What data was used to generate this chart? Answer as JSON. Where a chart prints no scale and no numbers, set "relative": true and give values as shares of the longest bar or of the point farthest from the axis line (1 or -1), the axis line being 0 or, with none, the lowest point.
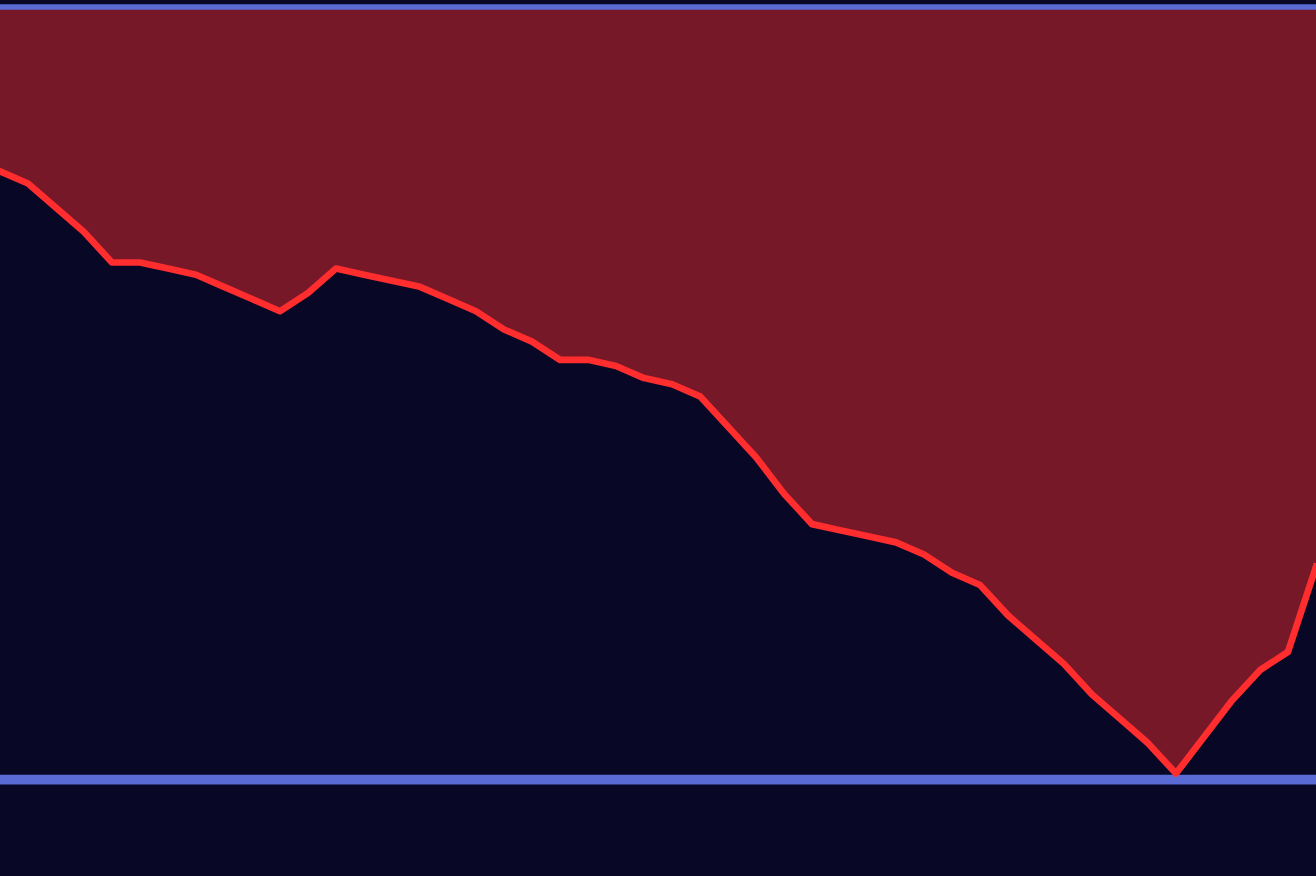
{
  "chart_data": {
    "type": "area",
    "relative": true,
    "categories": [
      null,
      null,
      null,
      null,
      null,
      null,
      null,
      null,
      null,
      null,
      null,
      null,
      null,
      null,
      null,
      null,
      null,
      null,
      null,
      null,
      null,
      null,
      null,
      null,
      null,
      null,
      null,
      null,
      null,
      null,
      null,
      null,
      null,
      null,
      null,
      null,
      null,
      null,
      null,
      null,
      null,
      null,
      null,
      null,
      null,
      null,
      null,
      null
    ],
    "series": [
      {
        "color": "#ff2d2d",
        "values": [
          1.0,
          0.98,
          0.94,
          0.9,
          0.85,
          0.85,
          0.84,
          0.83,
          0.81,
          0.79,
          0.77,
          0.8,
          0.84,
          0.83,
          0.82,
          0.81,
          0.79,
          0.77,
          0.74,
          0.72,
          0.69,
          0.69,
          0.68,
          0.66,
          0.65,
          0.63,
          0.58,
          0.53,
          0.47,
          0.42,
          0.41,
          0.4,
          0.39,
          0.37,
          0.34,
          0.32,
          0.27,
          0.23,
          0.19,
          0.14,
          0.1,
          0.06,
          0.01,
          0.07,
          0.13,
          0.18,
          0.21,
          0.35
        ]
      }
    ],
    "marker": "none",
    "line_style": "solid"
  }
}
